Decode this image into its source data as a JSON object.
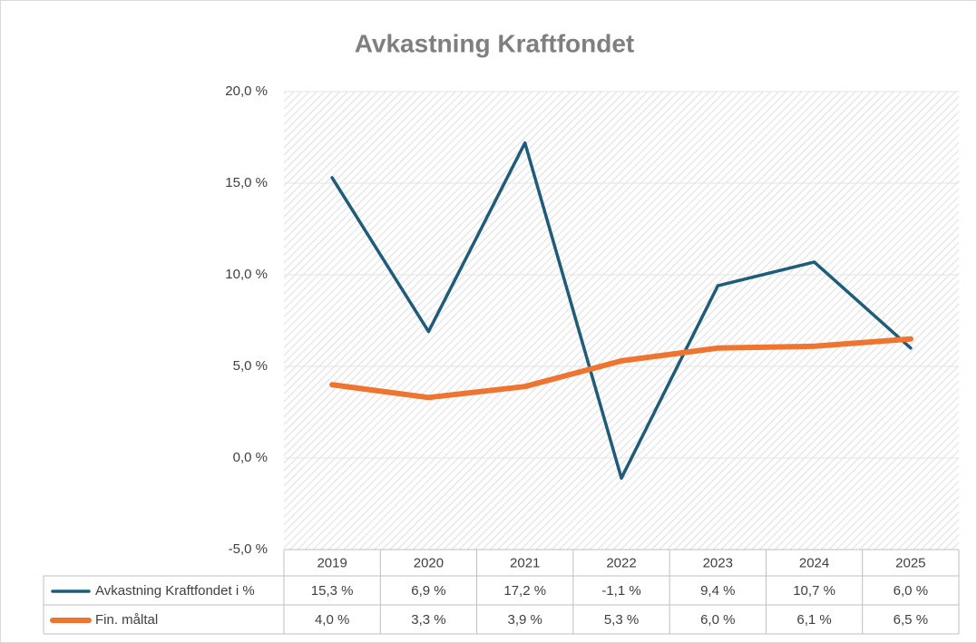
{
  "chart_data": {
    "type": "line",
    "title": "Avkastning Kraftfondet",
    "categories": [
      "2019",
      "2020",
      "2021",
      "2022",
      "2023",
      "2024",
      "2025"
    ],
    "series": [
      {
        "name": "Avkastning Kraftfondet i %",
        "color": "#1f5c7a",
        "values": [
          15.3,
          6.9,
          17.2,
          -1.1,
          9.4,
          10.7,
          6.0
        ],
        "value_labels": [
          "15,3 %",
          "6,9 %",
          "17,2 %",
          "-1,1 %",
          "9,4 %",
          "10,7 %",
          "6,0 %"
        ]
      },
      {
        "name": "Fin. måltal",
        "color": "#ee7430",
        "values": [
          4.0,
          3.3,
          3.9,
          5.3,
          6.0,
          6.1,
          6.5
        ],
        "value_labels": [
          "4,0 %",
          "3,3 %",
          "3,9 %",
          "5,3 %",
          "6,0 %",
          "6,1 %",
          "6,5 %"
        ]
      }
    ],
    "ylim": [
      -5,
      20
    ],
    "yticks": [
      {
        "value": -5,
        "label": "-5,0 %"
      },
      {
        "value": 0,
        "label": "0,0 %"
      },
      {
        "value": 5,
        "label": "5,0 %"
      },
      {
        "value": 10,
        "label": "10,0 %"
      },
      {
        "value": 15,
        "label": "15,0 %"
      },
      {
        "value": 20,
        "label": "20,0 %"
      }
    ],
    "grid": true
  }
}
